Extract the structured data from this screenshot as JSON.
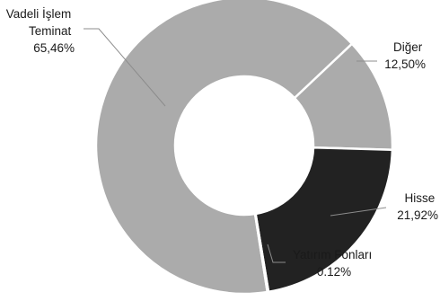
{
  "chart_data": {
    "type": "pie",
    "subtype": "donut",
    "slices": [
      {
        "label": "Vadeli İşlem Teminat",
        "label_lines": [
          "Vadeli İşlem",
          "Teminat"
        ],
        "value": 65.46,
        "value_text": "65,46%",
        "color": "#ababab"
      },
      {
        "label": "Diğer",
        "label_lines": [
          "Diğer"
        ],
        "value": 12.5,
        "value_text": "12,50%",
        "color": "#ababab"
      },
      {
        "label": "Hisse",
        "label_lines": [
          "Hisse"
        ],
        "value": 21.92,
        "value_text": "21,92%",
        "color": "#222222"
      },
      {
        "label": "Yatırım Fonları",
        "label_lines": [
          "Yatırım Fonları"
        ],
        "value": 0.12,
        "value_text": "0.12%",
        "color": "#ababab"
      }
    ],
    "legend": "none",
    "slice_border_color": "#ffffff",
    "leader_line_color": "#8c8c8c"
  }
}
